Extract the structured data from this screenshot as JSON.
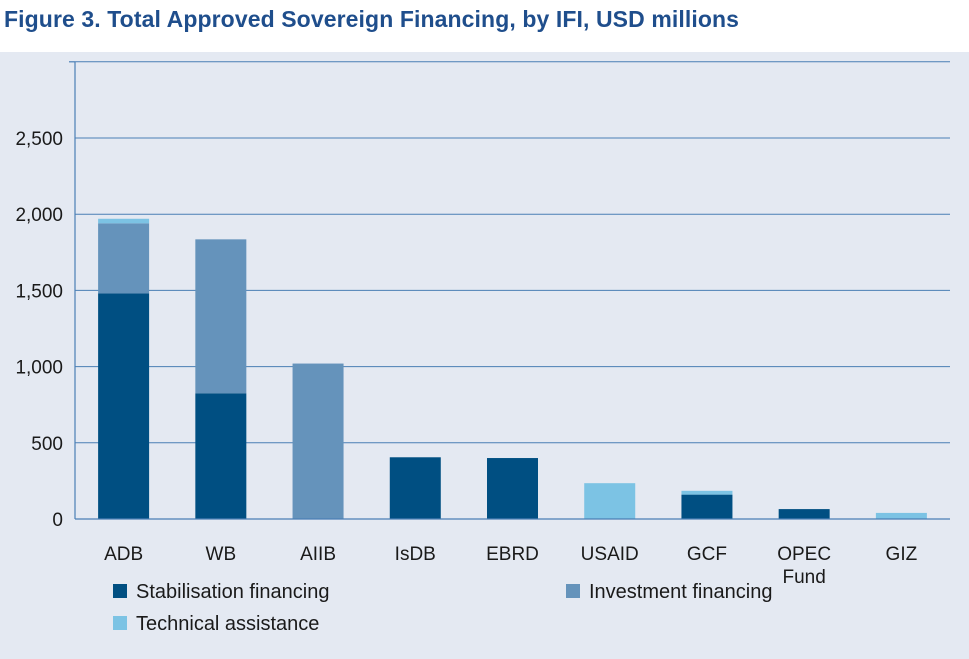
{
  "title": "Figure 3. Total Approved Sovereign Financing, by IFI, USD millions",
  "colors": {
    "stabilisation": "#004f82",
    "investment": "#6593bb",
    "technical": "#7cc3e4",
    "grid": "#4a7fb5",
    "panel": "#e4e9f2",
    "title": "#1f4e8c"
  },
  "chart_data": {
    "type": "bar",
    "stacked": true,
    "categories": [
      [
        "ADB"
      ],
      [
        "WB"
      ],
      [
        "AIIB"
      ],
      [
        "IsDB"
      ],
      [
        "EBRD"
      ],
      [
        "USAID"
      ],
      [
        "GCF"
      ],
      [
        "OPEC",
        "Fund"
      ],
      [
        "GIZ"
      ]
    ],
    "series": [
      {
        "name": "Stabilisation financing",
        "color": "#004f82",
        "values": [
          1480,
          825,
          0,
          405,
          400,
          0,
          160,
          65,
          0
        ]
      },
      {
        "name": "Investment financing",
        "color": "#6593bb",
        "values": [
          460,
          1010,
          1020,
          0,
          0,
          0,
          0,
          0,
          0
        ]
      },
      {
        "name": "Technical assistance",
        "color": "#7cc3e4",
        "values": [
          30,
          0,
          0,
          0,
          0,
          235,
          25,
          0,
          40
        ]
      }
    ],
    "yticks": [
      0,
      500,
      1000,
      1500,
      2000,
      2500
    ],
    "ytick_labels": [
      "0",
      "500",
      "1,000",
      "1,500",
      "2,000",
      "2,500"
    ],
    "ylim": [
      0,
      3000
    ],
    "grid": true,
    "legend": [
      "Stabilisation financing",
      "Investment financing",
      "Technical assistance"
    ],
    "legend_position": "bottom"
  }
}
